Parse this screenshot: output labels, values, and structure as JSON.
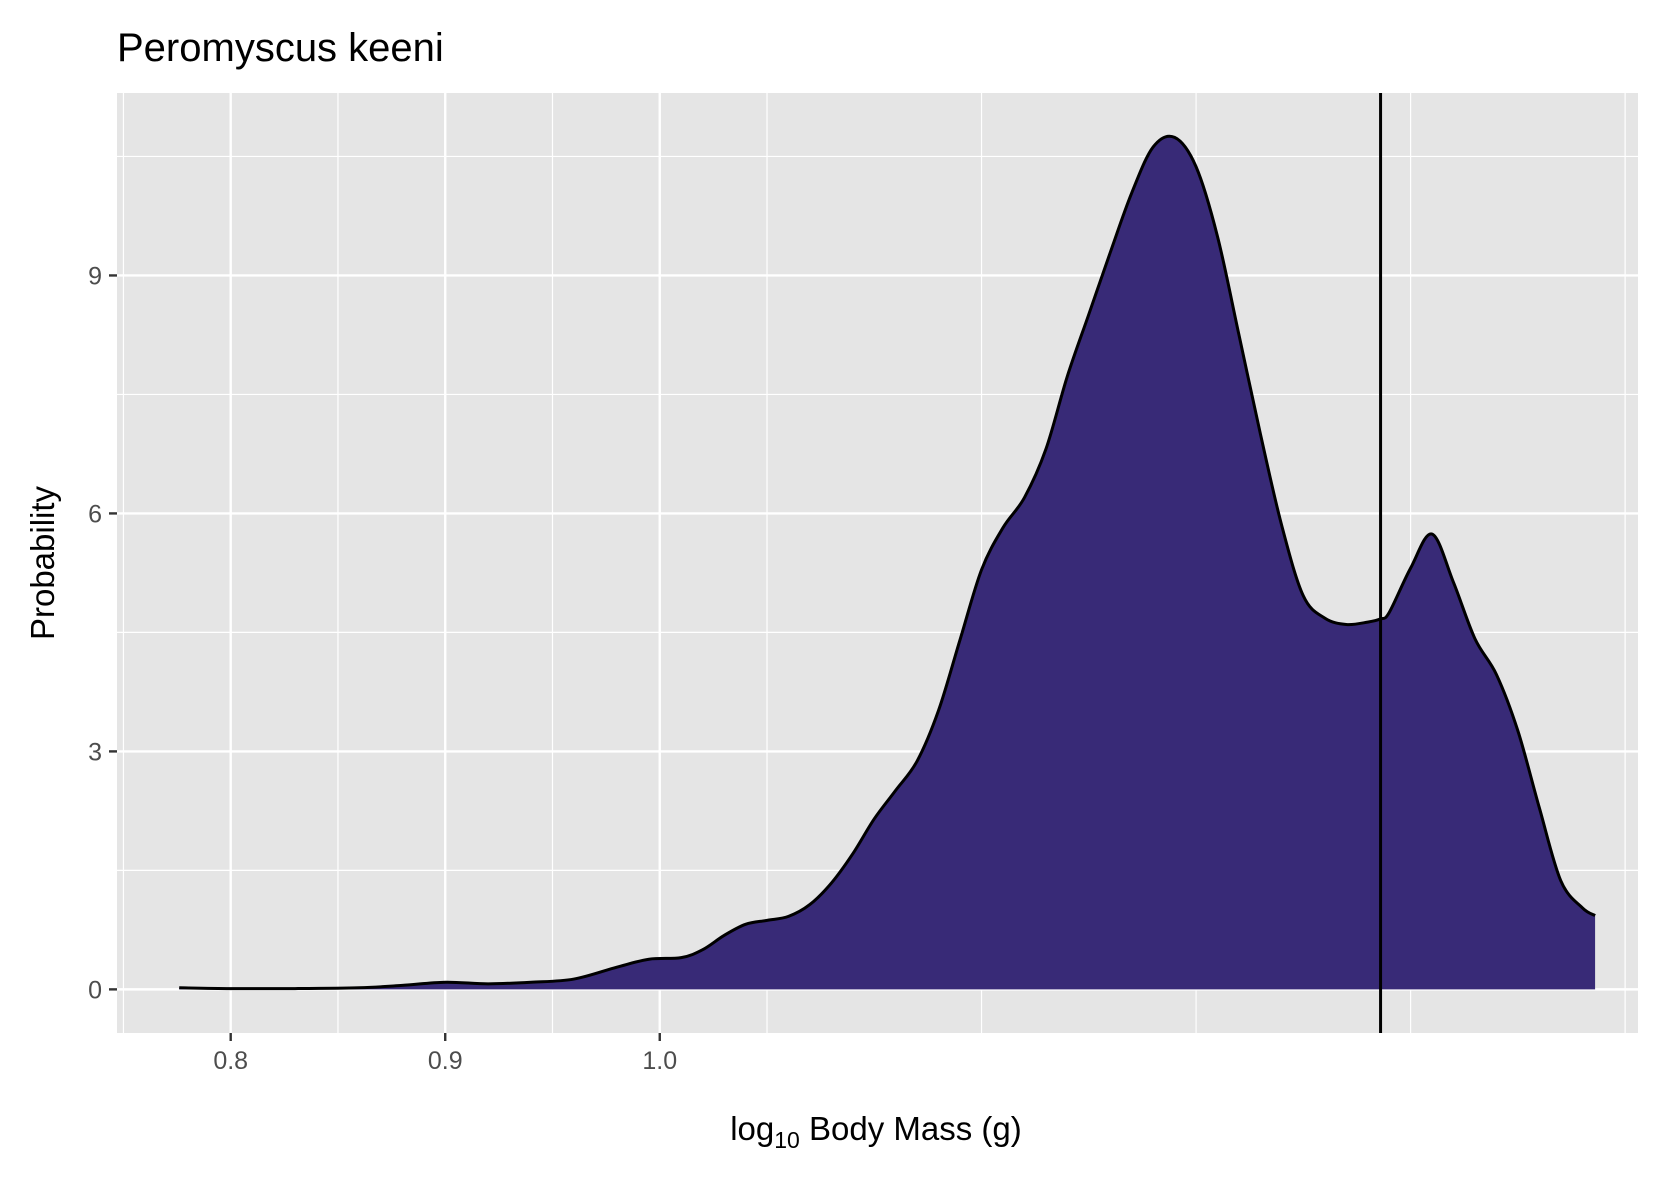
{
  "chart_data": {
    "type": "area",
    "title": "Peromyscus keeni",
    "xlabel_main": "log",
    "xlabel_sub": "10",
    "xlabel_rest": " Body Mass (g)",
    "ylabel": "Probability",
    "x_ticks": [
      0.8,
      0.9,
      1.0
    ],
    "x_tick_labels": [
      "0.8",
      "0.9",
      "1.0"
    ],
    "y_ticks": [
      0,
      3,
      6,
      9
    ],
    "y_tick_labels": [
      "0",
      "3",
      "6",
      "9"
    ],
    "xlim": [
      0.747,
      1.456
    ],
    "ylim": [
      -0.55,
      11.3
    ],
    "grid": true,
    "vline_x": 1.336,
    "fill_color": "#382a77",
    "panel_color": "#e5e5e5",
    "series": [
      {
        "x": [
          0.776,
          0.8,
          0.83,
          0.86,
          0.88,
          0.9,
          0.92,
          0.94,
          0.96,
          0.98,
          0.995,
          1.01,
          1.02,
          1.03,
          1.04,
          1.05,
          1.06,
          1.07,
          1.08,
          1.09,
          1.1,
          1.11,
          1.12,
          1.13,
          1.14,
          1.15,
          1.16,
          1.17,
          1.18,
          1.19,
          1.2,
          1.21,
          1.22,
          1.23,
          1.24,
          1.25,
          1.26,
          1.27,
          1.28,
          1.29,
          1.3,
          1.31,
          1.32,
          1.33,
          1.336,
          1.34,
          1.35,
          1.36,
          1.37,
          1.38,
          1.39,
          1.4,
          1.41,
          1.42,
          1.43,
          1.436
        ],
        "y": [
          0.02,
          0.01,
          0.01,
          0.02,
          0.05,
          0.09,
          0.07,
          0.09,
          0.13,
          0.28,
          0.38,
          0.4,
          0.5,
          0.68,
          0.82,
          0.87,
          0.92,
          1.07,
          1.34,
          1.71,
          2.15,
          2.51,
          2.88,
          3.52,
          4.41,
          5.29,
          5.82,
          6.2,
          6.81,
          7.73,
          8.51,
          9.29,
          10.04,
          10.62,
          10.74,
          10.37,
          9.49,
          8.25,
          7.0,
          5.84,
          4.96,
          4.68,
          4.6,
          4.63,
          4.67,
          4.75,
          5.31,
          5.74,
          5.13,
          4.42,
          3.97,
          3.26,
          2.29,
          1.37,
          1.03,
          0.93
        ]
      }
    ]
  }
}
